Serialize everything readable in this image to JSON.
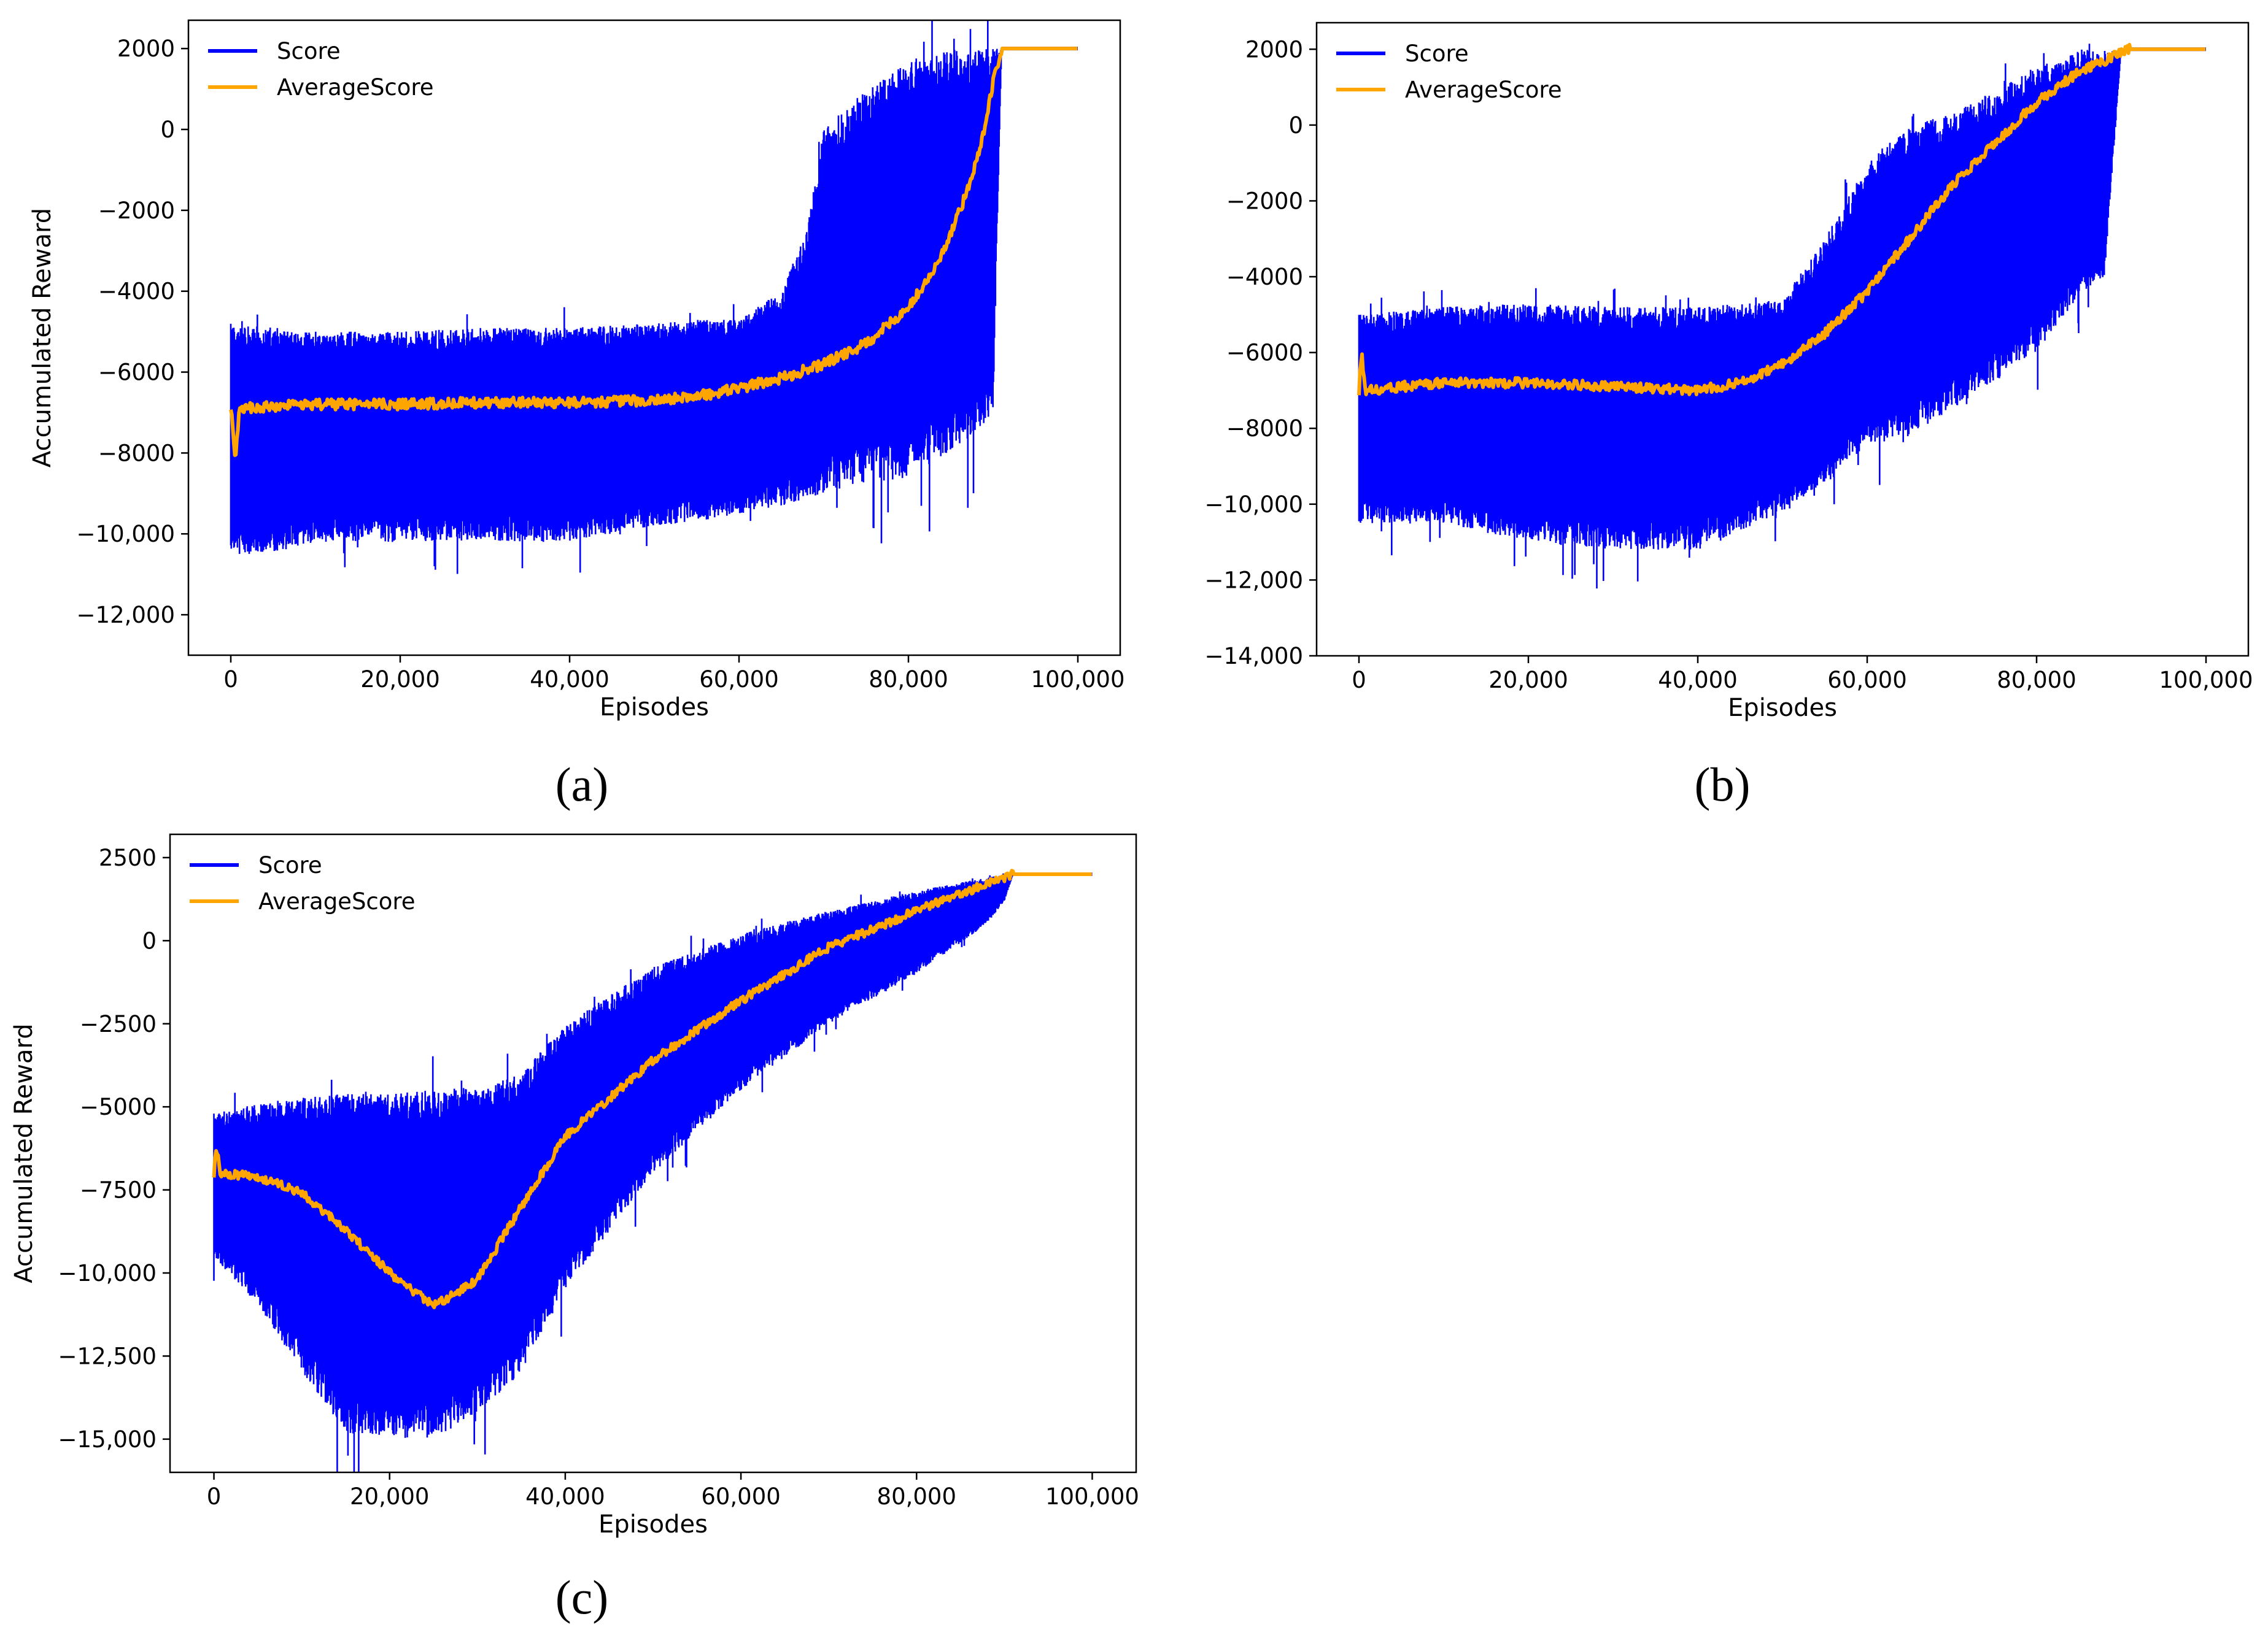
{
  "colors": {
    "score": "#0000ff",
    "average": "#ffa500",
    "axes": "#000000",
    "background": "#ffffff"
  },
  "chart_data": [
    {
      "id": "a",
      "caption": "(a)",
      "type": "line",
      "xlabel": "Episodes",
      "ylabel": "Accumulated Reward",
      "xlim": [
        -5000,
        105000
      ],
      "ylim": [
        -13000,
        2700
      ],
      "xticks": [
        0,
        20000,
        40000,
        60000,
        80000,
        100000
      ],
      "xtick_labels": [
        "0",
        "20,000",
        "40,000",
        "60,000",
        "80,000",
        "100,000"
      ],
      "yticks": [
        2000,
        0,
        -2000,
        -4000,
        -6000,
        -8000,
        -10000,
        -12000
      ],
      "ytick_labels": [
        "2000",
        "0",
        "−2000",
        "−4000",
        "−6000",
        "−8000",
        "−10,000",
        "−12,000"
      ],
      "legend": {
        "placement": "top-left",
        "entries": [
          "Score",
          "AverageScore"
        ]
      },
      "series": [
        {
          "name": "Score",
          "kind": "band",
          "x": [
            0,
            5000,
            10000,
            20000,
            30000,
            40000,
            50000,
            55000,
            60000,
            65000,
            68000,
            70000,
            75000,
            80000,
            85000,
            88000,
            90000,
            91000,
            100000
          ],
          "upper": [
            -4800,
            -4900,
            -5000,
            -5000,
            -4900,
            -4900,
            -4800,
            -4700,
            -4700,
            -4000,
            -2500,
            0,
            1000,
            1700,
            2000,
            2000,
            2000,
            2000,
            2000
          ],
          "lower": [
            -10500,
            -10500,
            -10200,
            -10200,
            -10200,
            -10200,
            -9800,
            -9700,
            -9500,
            -9300,
            -9200,
            -9000,
            -8800,
            -8600,
            -8000,
            -7500,
            -7000,
            2000,
            2000
          ]
        },
        {
          "name": "AverageScore",
          "kind": "line",
          "x": [
            0,
            500,
            1000,
            5000,
            10000,
            20000,
            30000,
            40000,
            50000,
            55000,
            60000,
            65000,
            70000,
            75000,
            80000,
            83000,
            85000,
            87000,
            89000,
            90000,
            91000,
            100000
          ],
          "y": [
            -6800,
            -8200,
            -6900,
            -6850,
            -6800,
            -6800,
            -6750,
            -6750,
            -6700,
            -6600,
            -6400,
            -6150,
            -5800,
            -5300,
            -4400,
            -3500,
            -2600,
            -1500,
            0,
            1200,
            2000,
            2000
          ]
        }
      ]
    },
    {
      "id": "b",
      "caption": "(b)",
      "type": "line",
      "xlabel": "Episodes",
      "ylabel": "",
      "xlim": [
        -5000,
        105000
      ],
      "ylim": [
        -14000,
        2700
      ],
      "xticks": [
        0,
        20000,
        40000,
        60000,
        80000,
        100000
      ],
      "xtick_labels": [
        "0",
        "20,000",
        "40,000",
        "60,000",
        "80,000",
        "100,000"
      ],
      "yticks": [
        2000,
        0,
        -2000,
        -4000,
        -6000,
        -8000,
        -10000,
        -12000,
        -14000
      ],
      "ytick_labels": [
        "2000",
        "0",
        "−2000",
        "−4000",
        "−6000",
        "−8000",
        "−10,000",
        "−12,000",
        "−14,000"
      ],
      "legend": {
        "placement": "top-left",
        "entries": [
          "Score",
          "AverageScore"
        ]
      },
      "series": [
        {
          "name": "Score",
          "kind": "band",
          "x": [
            0,
            10000,
            20000,
            30000,
            40000,
            50000,
            55000,
            60000,
            65000,
            70000,
            75000,
            80000,
            85000,
            88000,
            90000,
            91000,
            100000
          ],
          "upper": [
            -5000,
            -4800,
            -4700,
            -4800,
            -4800,
            -4600,
            -3000,
            -1000,
            0,
            300,
            900,
            1500,
            2000,
            2000,
            2000,
            2000,
            2000
          ],
          "lower": [
            -10500,
            -10500,
            -11000,
            -11200,
            -11200,
            -10200,
            -9500,
            -8500,
            -8200,
            -7500,
            -6800,
            -6000,
            -4500,
            -4000,
            2000,
            2000,
            2000
          ]
        },
        {
          "name": "AverageScore",
          "kind": "line",
          "x": [
            0,
            300,
            700,
            5000,
            10000,
            20000,
            30000,
            40000,
            45000,
            50000,
            55000,
            60000,
            65000,
            70000,
            75000,
            80000,
            85000,
            90000,
            91000,
            100000
          ],
          "y": [
            -7000,
            -6000,
            -7000,
            -6900,
            -6800,
            -6800,
            -6900,
            -7000,
            -6800,
            -6300,
            -5500,
            -4400,
            -3000,
            -1600,
            -500,
            600,
            1400,
            1900,
            2000,
            2000
          ]
        }
      ]
    },
    {
      "id": "c",
      "caption": "(c)",
      "type": "line",
      "xlabel": "Episodes",
      "ylabel": "Accumulated Reward",
      "xlim": [
        -5000,
        105000
      ],
      "ylim": [
        -16000,
        3200
      ],
      "xticks": [
        0,
        20000,
        40000,
        60000,
        80000,
        100000
      ],
      "xtick_labels": [
        "0",
        "20,000",
        "40,000",
        "60,000",
        "80,000",
        "100,000"
      ],
      "yticks": [
        2500,
        0,
        -2500,
        -5000,
        -7500,
        -10000,
        -12500,
        -15000
      ],
      "ytick_labels": [
        "2500",
        "0",
        "−2500",
        "−5000",
        "−7500",
        "−10,000",
        "−12,500",
        "−15,000"
      ],
      "legend": {
        "placement": "top-left",
        "entries": [
          "Score",
          "AverageScore"
        ]
      },
      "series": [
        {
          "name": "Score",
          "kind": "band",
          "x": [
            0,
            5000,
            10000,
            15000,
            20000,
            25000,
            30000,
            35000,
            40000,
            50000,
            60000,
            70000,
            80000,
            88000,
            90000,
            91000,
            100000
          ],
          "upper": [
            -5200,
            -4900,
            -4700,
            -4600,
            -4600,
            -4500,
            -4400,
            -4000,
            -2500,
            -800,
            200,
            900,
            1500,
            1900,
            2000,
            2000,
            2000
          ],
          "lower": [
            -9500,
            -11000,
            -13000,
            -14800,
            -15000,
            -15000,
            -14200,
            -13000,
            -10500,
            -7000,
            -4500,
            -2500,
            -1000,
            500,
            1200,
            2000,
            2000
          ]
        },
        {
          "name": "AverageScore",
          "kind": "line",
          "x": [
            0,
            300,
            700,
            5000,
            10000,
            15000,
            20000,
            25000,
            30000,
            35000,
            40000,
            50000,
            60000,
            70000,
            80000,
            85000,
            90000,
            91000,
            100000
          ],
          "y": [
            -7000,
            -6200,
            -7000,
            -7100,
            -7600,
            -8700,
            -10000,
            -11000,
            -10200,
            -8000,
            -5900,
            -3600,
            -1800,
            -200,
            900,
            1400,
            1900,
            2000,
            2000
          ]
        }
      ]
    }
  ]
}
